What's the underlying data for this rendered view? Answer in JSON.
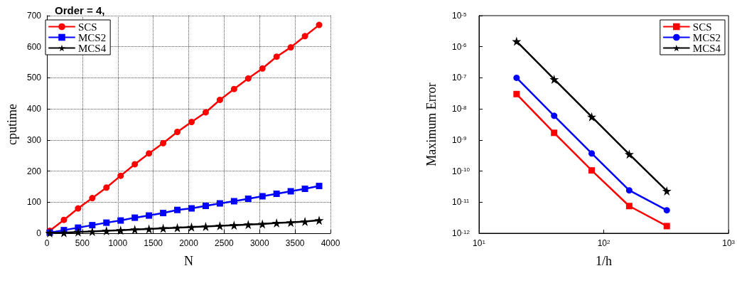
{
  "chart_data": [
    {
      "type": "line",
      "title": "Order = 4,",
      "xlabel": "N",
      "ylabel": "cputime",
      "x": [
        40,
        240,
        440,
        640,
        840,
        1040,
        1240,
        1440,
        1640,
        1840,
        2040,
        2240,
        2440,
        2640,
        2840,
        3040,
        3240,
        3440,
        3640,
        3840
      ],
      "series": [
        {
          "name": "SCS",
          "color": "#ff0000",
          "marker": "circle",
          "values": [
            8,
            43,
            80,
            113,
            147,
            185,
            222,
            257,
            290,
            326,
            358,
            389,
            429,
            464,
            498,
            530,
            568,
            598,
            634,
            670
          ]
        },
        {
          "name": "MCS2",
          "color": "#0000ff",
          "marker": "square",
          "values": [
            2,
            10,
            18,
            26,
            34,
            41,
            50,
            57,
            65,
            75,
            80,
            88,
            96,
            103,
            111,
            119,
            127,
            135,
            143,
            152
          ]
        },
        {
          "name": "MCS4",
          "color": "#000000",
          "marker": "star",
          "values": [
            1,
            2,
            4,
            6,
            8,
            10,
            12,
            14,
            16,
            18,
            20,
            22,
            24,
            26,
            28,
            30,
            33,
            35,
            38,
            42
          ]
        }
      ],
      "xlim": [
        0,
        4000
      ],
      "xticks": [
        0,
        500,
        1000,
        1500,
        2000,
        2500,
        3000,
        3500,
        4000
      ],
      "ylim": [
        0,
        700
      ],
      "yticks": [
        0,
        100,
        200,
        300,
        400,
        500,
        600,
        700
      ],
      "grid": true,
      "legend": "top left",
      "line_style": "solid"
    },
    {
      "type": "line",
      "xlabel": "1/h",
      "ylabel": "Maximum Error",
      "x": [
        20,
        40,
        80,
        160,
        320
      ],
      "series": [
        {
          "name": "SCS",
          "color": "#ff0000",
          "marker": "square",
          "values": [
            3e-08,
            1.7e-09,
            1.05e-10,
            7.5e-12,
            1.7e-12
          ]
        },
        {
          "name": "MCS2",
          "color": "#0000ff",
          "marker": "circle",
          "values": [
            1e-07,
            6e-09,
            3.7e-10,
            2.4e-11,
            5.5e-12
          ]
        },
        {
          "name": "MCS4",
          "color": "#000000",
          "marker": "star",
          "values": [
            1.5e-06,
            9e-08,
            5.6e-09,
            3.5e-10,
            2.3e-11
          ]
        }
      ],
      "log": "xy",
      "xlim": [
        10,
        1000
      ],
      "xticks": [
        {
          "value": 10,
          "label": "10$^{1}$"
        },
        {
          "value": 100,
          "label": "10$^{2}$"
        },
        {
          "value": 1000,
          "label": "10$^{3}$"
        }
      ],
      "ylim": [
        1e-12,
        1e-05
      ],
      "yticks": [
        {
          "value": 1e-12,
          "label": "10$^{-12}$"
        },
        {
          "value": 1e-11,
          "label": "10$^{-11}$"
        },
        {
          "value": 1e-10,
          "label": "10$^{-10}$"
        },
        {
          "value": 1e-09,
          "label": "10$^{-9}$"
        },
        {
          "value": 1e-08,
          "label": "10$^{-8}$"
        },
        {
          "value": 1e-07,
          "label": "10$^{-7}$"
        },
        {
          "value": 1e-06,
          "label": "10$^{-6}$"
        },
        {
          "value": 1e-05,
          "label": "10$^{-5}$"
        }
      ],
      "grid": false,
      "legend": "top right",
      "line_style": "solid"
    }
  ]
}
